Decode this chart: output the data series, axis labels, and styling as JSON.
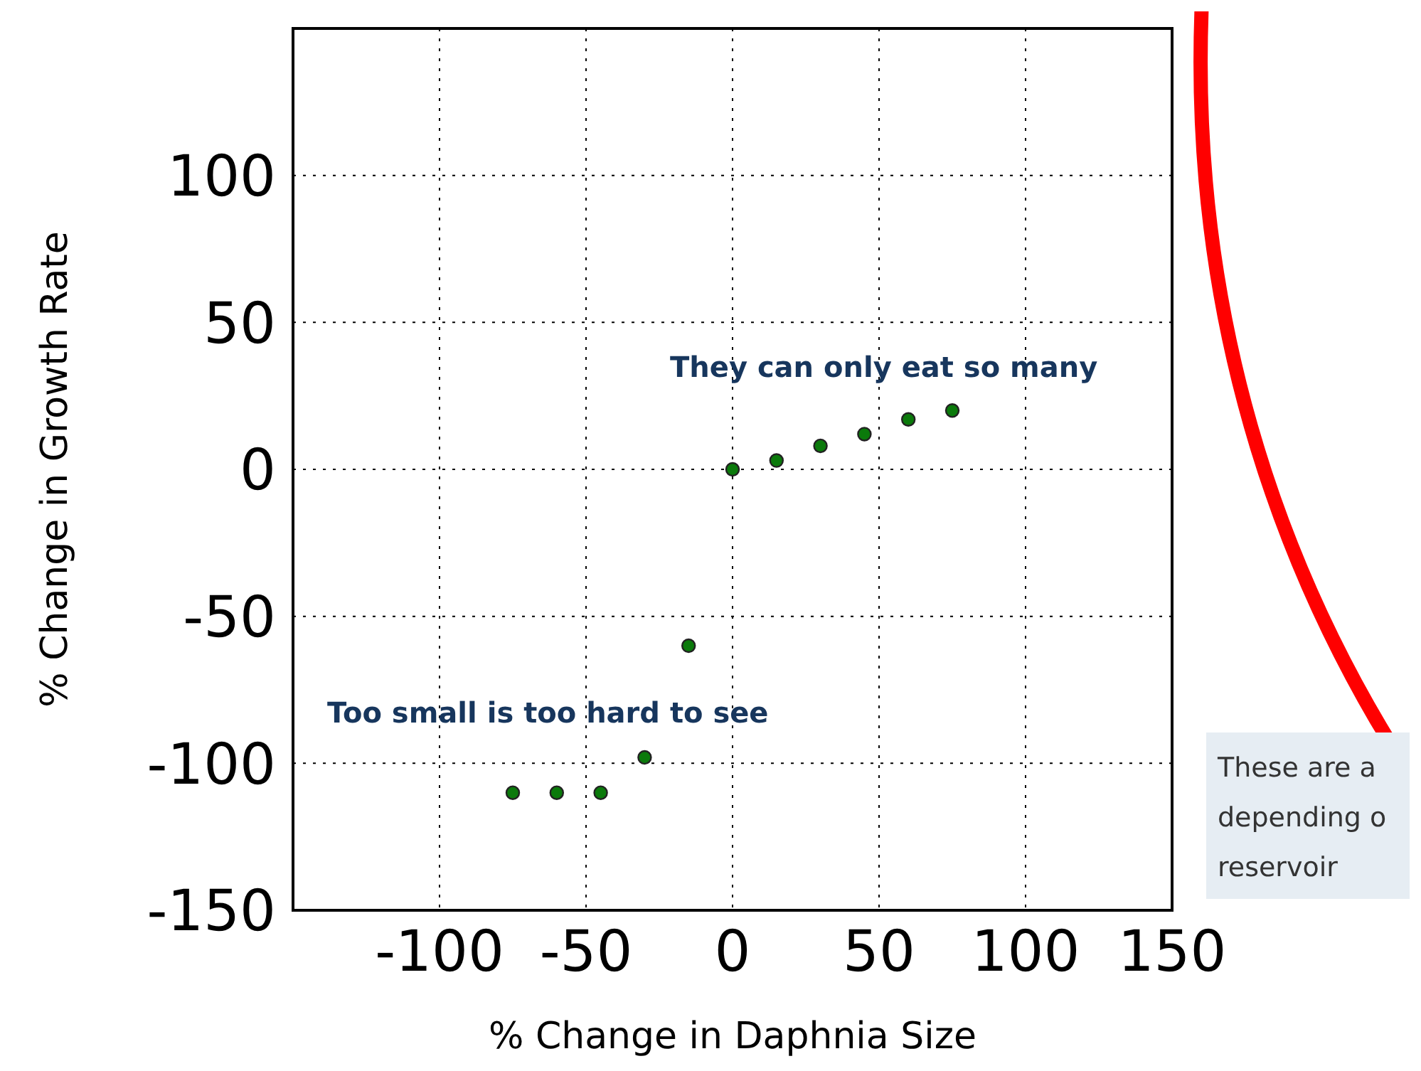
{
  "chart_data": {
    "type": "scatter",
    "xlabel": "% Change in Daphnia Size",
    "ylabel": "% Change in Growth Rate",
    "x": [
      -75,
      -60,
      -45,
      -30,
      -15,
      0,
      15,
      30,
      45,
      60,
      75
    ],
    "series": [
      {
        "color": "#0b7a0b",
        "values": [
          -110,
          -110,
          -110,
          -98,
          -60,
          0,
          3,
          8,
          12,
          17,
          20
        ]
      }
    ],
    "xlim": [
      -150,
      150
    ],
    "xticks": [
      -100,
      -50,
      0,
      50,
      100,
      150
    ],
    "ylim": [
      -150,
      150
    ],
    "yticks": [
      -150,
      -100,
      -50,
      0,
      50,
      100
    ],
    "grid": true,
    "marker": "circle",
    "legend": false,
    "annotations": [
      "They can only eat so many",
      "Too small is too hard to see",
      "These are a\ndepending o\nreservoir"
    ]
  }
}
